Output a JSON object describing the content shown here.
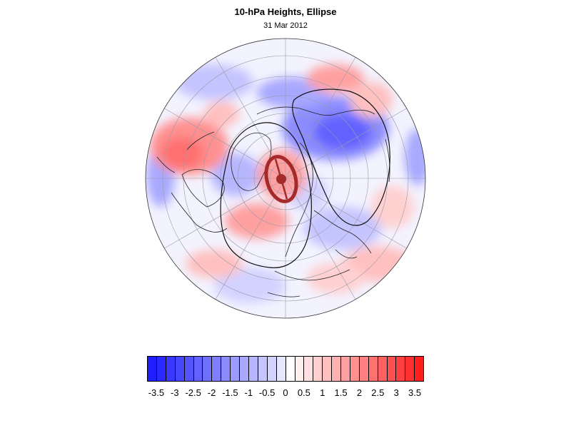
{
  "figure": {
    "title": "10-hPa Heights, Ellipse",
    "subtitle": "31 Mar 2012"
  },
  "map": {
    "projection": "north-polar-stereographic",
    "field": "10-hPa height anomaly",
    "ellipse_color": "#a52a2a",
    "contour_color": "#000000"
  },
  "colorbar": {
    "levels": [
      -3.5,
      -3.25,
      -3,
      -2.75,
      -2.5,
      -2.25,
      -2,
      -1.75,
      -1.5,
      -1.25,
      -1,
      -0.75,
      -0.5,
      -0.25,
      0,
      0.25,
      0.5,
      0.75,
      1,
      1.25,
      1.5,
      1.75,
      2,
      2.25,
      2.5,
      2.75,
      3,
      3.25,
      3.5
    ],
    "colors": [
      "#1e1eff",
      "#2a2aff",
      "#3838ff",
      "#4646ff",
      "#5454ff",
      "#6262ff",
      "#7070ff",
      "#7e7eff",
      "#8c8cff",
      "#9a9aff",
      "#a8a8ff",
      "#b6b6ff",
      "#c4c4ff",
      "#d2d2ff",
      "#e6e6ff",
      "#ffffff",
      "#fff0f0",
      "#ffe0e0",
      "#ffd0d0",
      "#ffc0c0",
      "#ffb0b0",
      "#ffa0a0",
      "#ff9090",
      "#ff8080",
      "#ff7070",
      "#ff6060",
      "#ff5050",
      "#ff4040",
      "#ff3030",
      "#ff1e1e"
    ],
    "tick_labels": [
      "-3.5",
      "-3",
      "-2.5",
      "-2",
      "-1.5",
      "-1",
      "-0.5",
      "0",
      "0.5",
      "1",
      "1.5",
      "2",
      "2.5",
      "3",
      "3.5"
    ]
  }
}
